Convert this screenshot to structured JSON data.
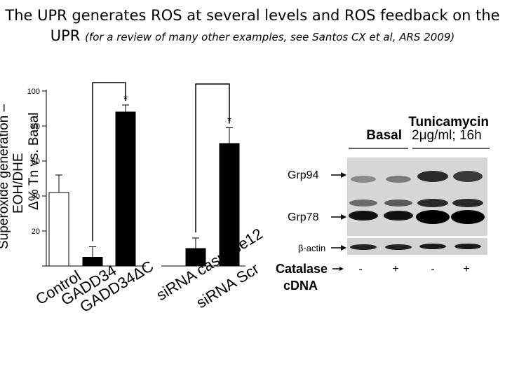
{
  "title": {
    "line1": "The UPR generates ROS at several levels and ROS feedback on the",
    "line2_main": "UPR",
    "line2_note": "(for a review of many other examples, see Santos CX et al, ARS 2009)"
  },
  "chart_data": {
    "type": "bar",
    "categories": [
      "Control",
      "GADD34",
      "GADD34ΔC",
      "siRNA caspase12",
      "siRNA Scr"
    ],
    "values": [
      42,
      5,
      88,
      10,
      70
    ],
    "errors": [
      10,
      6,
      4,
      6,
      9
    ],
    "bar_colors": [
      "#ffffff",
      "#000000",
      "#000000",
      "#000000",
      "#000000"
    ],
    "ylabel_lines": [
      "Superoxide generation –",
      "EOH/DHE",
      "Δ% Tn vs. Basal"
    ],
    "yticks": [
      0,
      20,
      40,
      60,
      80,
      100
    ],
    "ytick_labels": [
      "",
      "20",
      "40",
      "60",
      "80",
      "100"
    ],
    "ylim": [
      0,
      100
    ],
    "significance": [
      {
        "from": 1,
        "to": 2,
        "label": "*"
      },
      {
        "from": 3,
        "to": 4,
        "label": "*"
      }
    ]
  },
  "blot": {
    "header": "Tunicamycin",
    "basal_label": "Basal",
    "treat_label": "2μg/ml; 16h",
    "bands": [
      "Grp94",
      "Grp78",
      "β-actin"
    ],
    "condition_label": [
      "Catalase",
      "cDNA"
    ],
    "lane_signs": [
      "-",
      "+",
      "-",
      "+"
    ]
  }
}
